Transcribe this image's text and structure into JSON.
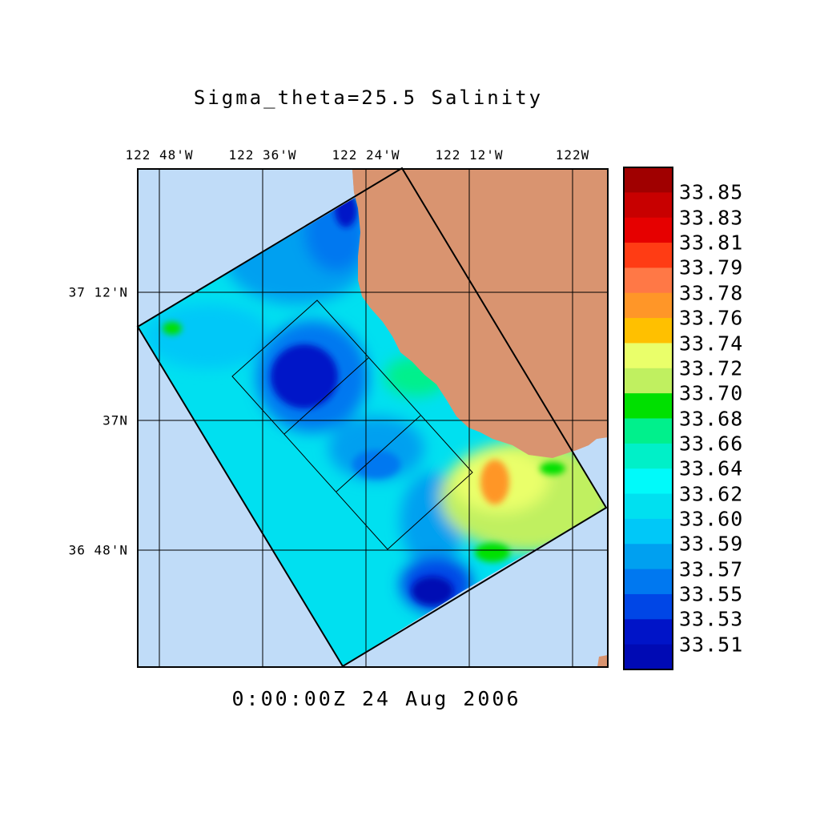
{
  "title": "Sigma_theta=25.5 Salinity",
  "timestamp": "0:00:00Z  24 Aug 2006",
  "axes": {
    "lon_ticks": [
      "122 48'W",
      "122 36'W",
      "122 24'W",
      "122 12'W",
      "122W"
    ],
    "lat_ticks": [
      "37 12'N",
      "37N",
      "36 48'N"
    ]
  },
  "colors": {
    "ocean": "#c0dcf8",
    "land": "#d99470",
    "gridline": "#000000"
  },
  "colorbar": {
    "labels": [
      "33.85",
      "33.83",
      "33.81",
      "33.79",
      "33.78",
      "33.76",
      "33.74",
      "33.72",
      "33.70",
      "33.68",
      "33.66",
      "33.64",
      "33.62",
      "33.60",
      "33.59",
      "33.57",
      "33.55",
      "33.53",
      "33.51"
    ],
    "colors": [
      "#a00000",
      "#c80000",
      "#e60000",
      "#ff3c14",
      "#ff7846",
      "#ff9628",
      "#ffc000",
      "#eaff6a",
      "#c0f060",
      "#00e000",
      "#00f08c",
      "#00f0c8",
      "#00fafa",
      "#00e0f0",
      "#00c8f8",
      "#00a0f0",
      "#0078f0",
      "#0046e6",
      "#0014c8",
      "#000ab4"
    ]
  }
}
